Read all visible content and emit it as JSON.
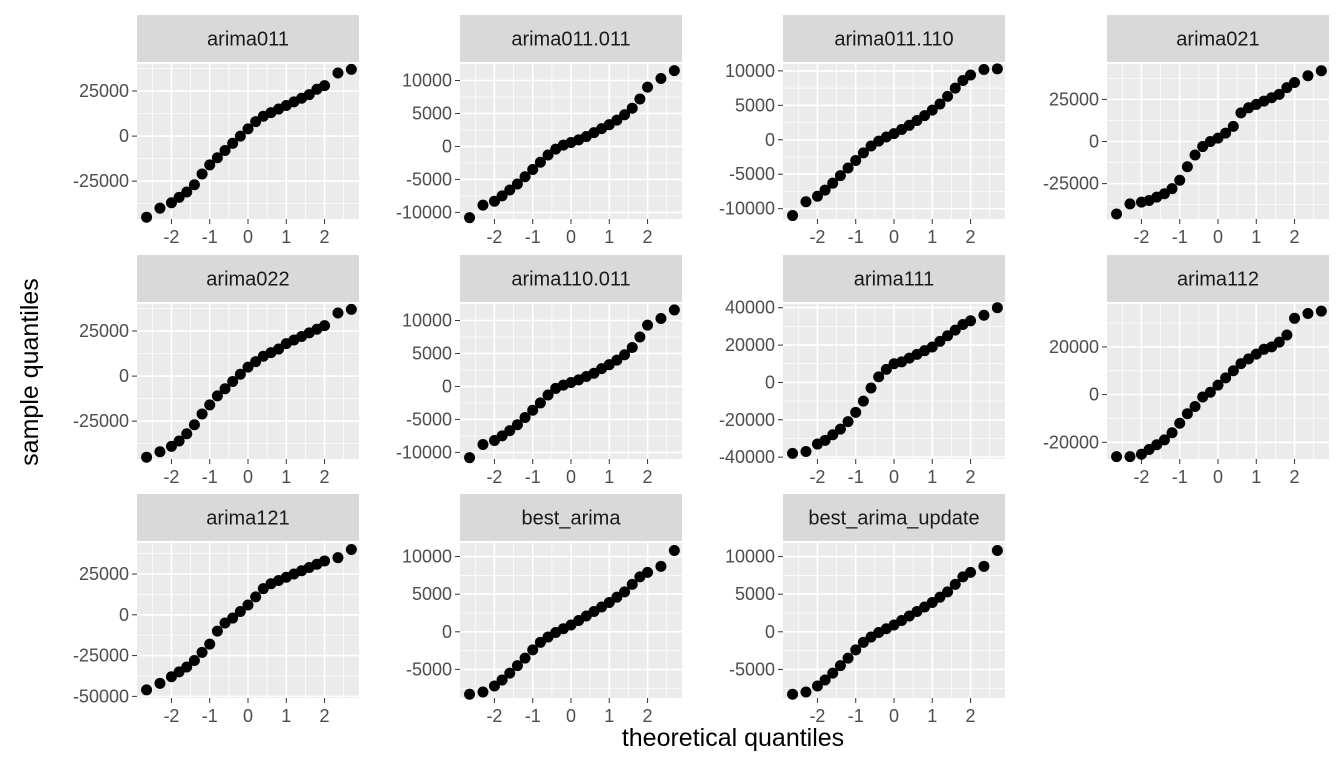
{
  "chart_data": {
    "type": "scatter",
    "layout": "facet-grid",
    "xlabel": "theoretical quantiles",
    "ylabel": "sample quantiles",
    "grid": true,
    "legend": "none",
    "colors": {
      "panel_background": "#ebebeb",
      "strip_background": "#d9d9d9",
      "grid_major": "#ffffff",
      "point": "#000000",
      "tick_text": "#4d4d4d"
    },
    "x_ticks": [
      -2,
      -1,
      0,
      1,
      2
    ],
    "xlim": [
      -2.9,
      2.9
    ],
    "quantiles_x": [
      -2.65,
      -2.3,
      -2.0,
      -1.8,
      -1.6,
      -1.4,
      -1.2,
      -1.0,
      -0.8,
      -0.6,
      -0.4,
      -0.2,
      0,
      0.2,
      0.4,
      0.6,
      0.8,
      1.0,
      1.2,
      1.4,
      1.6,
      1.8,
      2.0,
      2.35,
      2.7
    ],
    "panels": [
      {
        "title": "arima011",
        "y_ticks": [
          -25000,
          0,
          25000
        ],
        "ylim": [
          -46000,
          40000
        ],
        "y": [
          -45000,
          -40000,
          -37000,
          -34000,
          -31000,
          -27000,
          -21000,
          -16000,
          -12000,
          -8000,
          -4000,
          0,
          4000,
          8000,
          11000,
          13000,
          15000,
          17000,
          19000,
          21000,
          23000,
          26000,
          28000,
          35000,
          37000
        ]
      },
      {
        "title": "arima011.011",
        "y_ticks": [
          -10000,
          -5000,
          0,
          5000,
          10000
        ],
        "ylim": [
          -11000,
          12500
        ],
        "y": [
          -10800,
          -8900,
          -8300,
          -7500,
          -6600,
          -5700,
          -4600,
          -3500,
          -2400,
          -1300,
          -400,
          200,
          600,
          1000,
          1500,
          2100,
          2700,
          3300,
          4000,
          4800,
          5800,
          7200,
          9000,
          10300,
          11500
        ]
      },
      {
        "title": "arima011.110",
        "y_ticks": [
          -10000,
          -5000,
          0,
          5000,
          10000
        ],
        "ylim": [
          -11500,
          11000
        ],
        "y": [
          -11000,
          -9000,
          -8200,
          -7300,
          -6300,
          -5200,
          -4100,
          -3000,
          -1900,
          -900,
          -200,
          400,
          900,
          1500,
          2100,
          2800,
          3500,
          4300,
          5200,
          6300,
          7500,
          8600,
          9400,
          10200,
          10300
        ]
      },
      {
        "title": "arima021",
        "y_ticks": [
          -25000,
          0,
          25000
        ],
        "ylim": [
          -46000,
          46000
        ],
        "y": [
          -43000,
          -37000,
          -36000,
          -35000,
          -33000,
          -31000,
          -28000,
          -23000,
          -15000,
          -8000,
          -3000,
          0,
          2000,
          5000,
          9000,
          17000,
          20000,
          22000,
          24000,
          26000,
          28000,
          32000,
          35000,
          39000,
          42000
        ]
      },
      {
        "title": "arima022",
        "y_ticks": [
          -25000,
          0,
          25000
        ],
        "ylim": [
          -46000,
          40000
        ],
        "y": [
          -45000,
          -42000,
          -39000,
          -36000,
          -32000,
          -27000,
          -21000,
          -16000,
          -11000,
          -7000,
          -3000,
          1000,
          5000,
          8000,
          11000,
          13000,
          15000,
          18000,
          20000,
          22000,
          24000,
          26000,
          28000,
          35000,
          37000
        ]
      },
      {
        "title": "arima110.011",
        "y_ticks": [
          -10000,
          -5000,
          0,
          5000,
          10000
        ],
        "ylim": [
          -11000,
          12500
        ],
        "y": [
          -10800,
          -8800,
          -8200,
          -7500,
          -6700,
          -5800,
          -4700,
          -3600,
          -2500,
          -1300,
          -300,
          200,
          600,
          1000,
          1500,
          2000,
          2700,
          3300,
          4000,
          4800,
          5900,
          7500,
          9300,
          10300,
          11600
        ]
      },
      {
        "title": "arima111",
        "y_ticks": [
          -40000,
          -20000,
          0,
          20000,
          40000
        ],
        "ylim": [
          -41000,
          42000
        ],
        "y": [
          -38000,
          -37000,
          -33000,
          -31000,
          -28000,
          -25000,
          -21000,
          -16000,
          -10000,
          -3000,
          3000,
          7000,
          10000,
          11000,
          13000,
          15000,
          17000,
          19000,
          22000,
          25000,
          28000,
          31000,
          33000,
          36000,
          40000
        ]
      },
      {
        "title": "arima112",
        "y_ticks": [
          -20000,
          0,
          20000
        ],
        "ylim": [
          -27000,
          38000
        ],
        "y": [
          -26000,
          -26000,
          -25000,
          -23000,
          -21000,
          -19000,
          -16000,
          -12000,
          -8000,
          -5000,
          -1000,
          1000,
          4000,
          7000,
          10000,
          13000,
          15000,
          17000,
          19000,
          20000,
          22000,
          25000,
          32000,
          34000,
          35000
        ]
      },
      {
        "title": "arima121",
        "y_ticks": [
          -50000,
          -25000,
          0,
          25000
        ],
        "ylim": [
          -51000,
          44000
        ],
        "y": [
          -46000,
          -42000,
          -38000,
          -35000,
          -32000,
          -28000,
          -23000,
          -18000,
          -10000,
          -5000,
          -2000,
          2000,
          6000,
          11000,
          16000,
          19000,
          21000,
          23000,
          25000,
          27000,
          29000,
          31000,
          33000,
          35000,
          40000
        ]
      },
      {
        "title": "best_arima",
        "y_ticks": [
          -5000,
          0,
          5000,
          10000
        ],
        "ylim": [
          -8800,
          11800
        ],
        "y": [
          -8300,
          -8000,
          -7200,
          -6400,
          -5500,
          -4500,
          -3500,
          -2400,
          -1400,
          -700,
          -100,
          400,
          900,
          1500,
          2100,
          2700,
          3300,
          3900,
          4600,
          5300,
          6300,
          7300,
          7900,
          8700,
          10800
        ]
      },
      {
        "title": "best_arima_update",
        "y_ticks": [
          -5000,
          0,
          5000,
          10000
        ],
        "ylim": [
          -8800,
          11800
        ],
        "y": [
          -8300,
          -8000,
          -7200,
          -6400,
          -5500,
          -4500,
          -3500,
          -2400,
          -1400,
          -700,
          -100,
          400,
          900,
          1500,
          2100,
          2700,
          3300,
          3900,
          4600,
          5300,
          6300,
          7300,
          7900,
          8700,
          10800
        ]
      }
    ]
  }
}
